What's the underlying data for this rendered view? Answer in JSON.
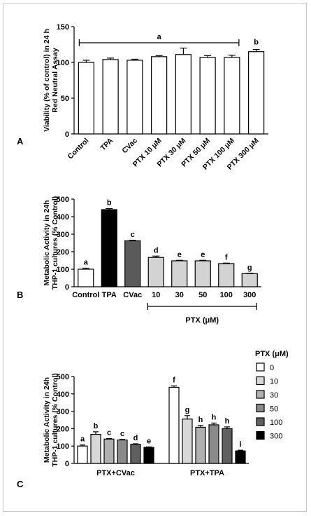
{
  "chart_data": [
    {
      "type": "bar",
      "panel_label": "A",
      "ylabel_line1": "Viability (% of control) in 24 h",
      "ylabel_line2": "Red Neutral Assay",
      "ylim": [
        0,
        150
      ],
      "yticks": [
        "0",
        "50",
        "100",
        "150"
      ],
      "categories": [
        "Control",
        "TPA",
        "CVac",
        "PTX 10 μM",
        "PTX 30 μM",
        "PTX 50 μM",
        "PTX 100 μM",
        "PTX 300 μM"
      ],
      "values": [
        100,
        104,
        103,
        108,
        111,
        107,
        107,
        115
      ],
      "errors": [
        3,
        2,
        1.5,
        1.5,
        9,
        2.5,
        3,
        3
      ],
      "bar_color": "#ffffff",
      "group_bracket_label": "a",
      "single_letter": "b"
    },
    {
      "type": "bar",
      "panel_label": "B",
      "ylabel_line1": "Metabolic Activity in 24h",
      "ylabel_line2": "THP-1 cultures (% Control)",
      "ylim": [
        0,
        500
      ],
      "yticks": [
        "0",
        "100",
        "200",
        "300",
        "400",
        "500"
      ],
      "categories": [
        "Control",
        "TPA",
        "CVac",
        "10",
        "30",
        "50",
        "100",
        "300"
      ],
      "values": [
        100,
        440,
        262,
        167,
        148,
        148,
        132,
        75
      ],
      "errors": [
        6,
        6,
        3,
        8,
        3,
        3,
        3,
        2
      ],
      "letters": [
        "a",
        "b",
        "c",
        "d",
        "e",
        "e",
        "f",
        "g"
      ],
      "colors": [
        "#ffffff",
        "#000000",
        "#5a5a5a",
        "#d3d3d3",
        "#d3d3d3",
        "#d3d3d3",
        "#d3d3d3",
        "#d3d3d3"
      ],
      "xgroup_label": "PTX (μM)"
    },
    {
      "type": "bar",
      "panel_label": "C",
      "ylabel_line1": "Metabolic Activity in 24h",
      "ylabel_line2": "THP-1 cultures (% Control)",
      "ylim": [
        0,
        500
      ],
      "yticks": [
        "0",
        "100",
        "200",
        "300",
        "400",
        "500"
      ],
      "categories": [
        "PTX+CVac",
        "PTX+TPA"
      ],
      "legend_title": "PTX (μM)",
      "legend_position": "right",
      "series": [
        {
          "name": "0",
          "color": "#ffffff",
          "values": [
            100,
            438
          ],
          "errors": [
            6,
            8
          ],
          "letters": [
            "a",
            "f"
          ]
        },
        {
          "name": "10",
          "color": "#d8d8d8",
          "values": [
            167,
            255
          ],
          "errors": [
            15,
            20
          ],
          "letters": [
            "b",
            "g"
          ]
        },
        {
          "name": "30",
          "color": "#b0b0b0",
          "values": [
            140,
            208
          ],
          "errors": [
            3,
            10
          ],
          "letters": [
            "c",
            "h"
          ]
        },
        {
          "name": "50",
          "color": "#8a8a8a",
          "values": [
            135,
            222
          ],
          "errors": [
            3,
            10
          ],
          "letters": [
            "c",
            "h"
          ]
        },
        {
          "name": "100",
          "color": "#606060",
          "values": [
            110,
            200
          ],
          "errors": [
            3,
            10
          ],
          "letters": [
            "d",
            "h"
          ]
        },
        {
          "name": "300",
          "color": "#000000",
          "values": [
            92,
            72
          ],
          "errors": [
            3,
            4
          ],
          "letters": [
            "e",
            "i"
          ]
        }
      ]
    }
  ]
}
